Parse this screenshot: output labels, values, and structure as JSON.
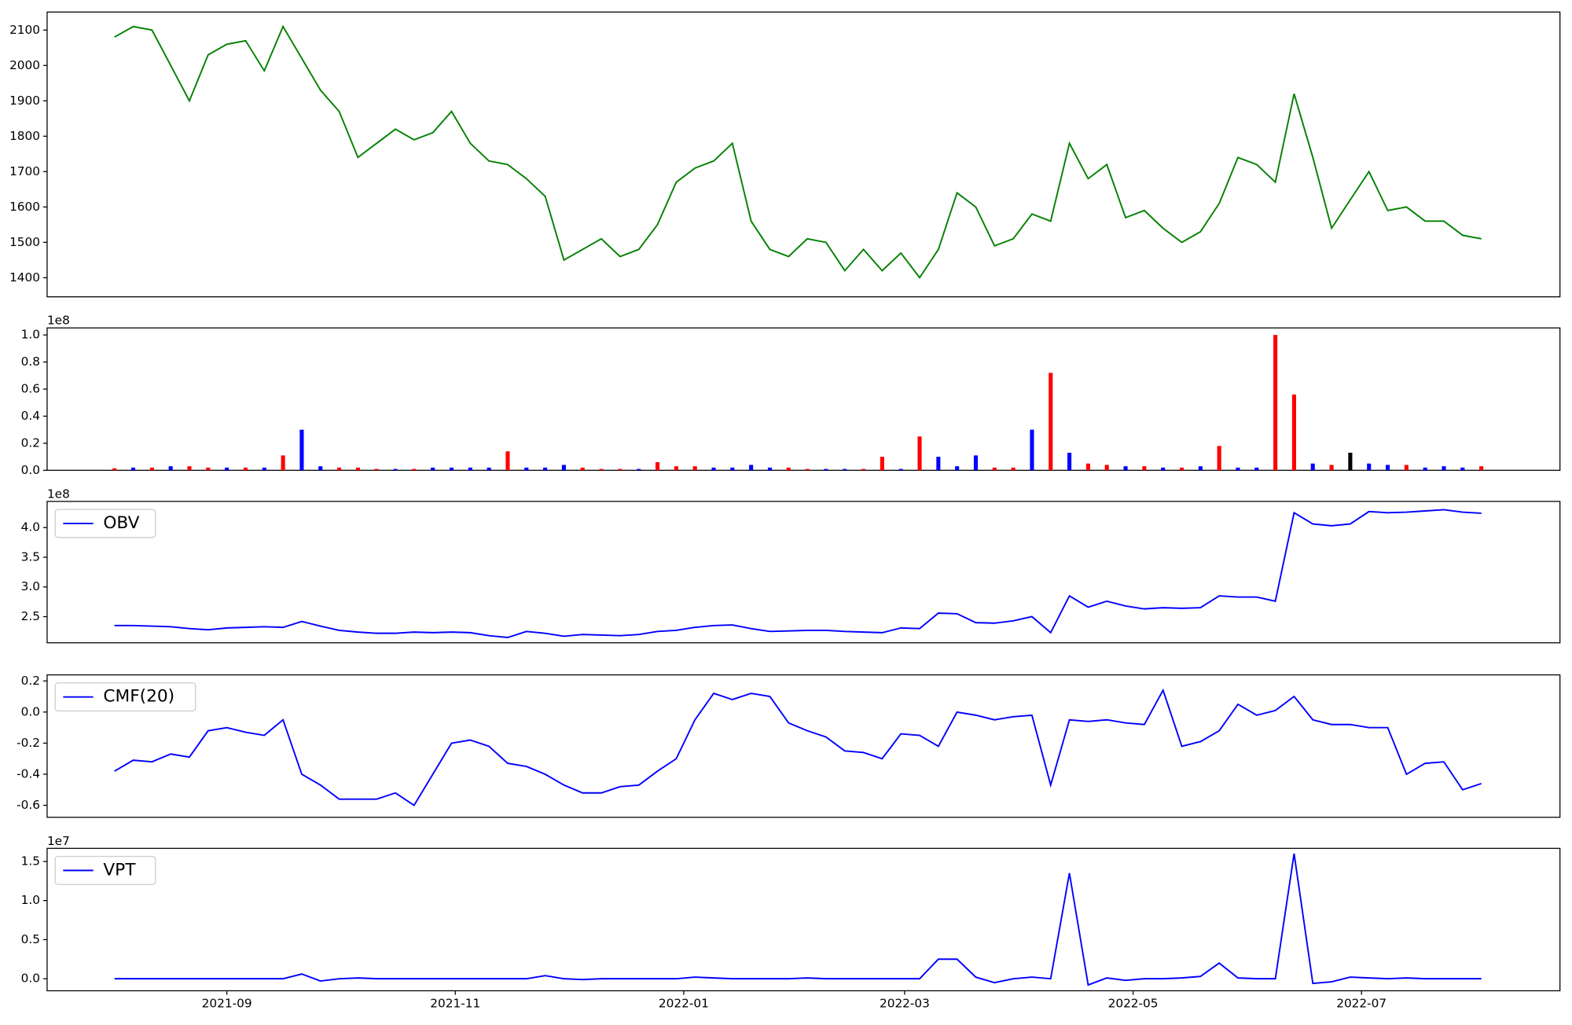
{
  "chart_data": [
    {
      "type": "line",
      "color": "#008000",
      "ylim": [
        1346,
        2151
      ],
      "yticks": [
        1400,
        1500,
        1600,
        1700,
        1800,
        1900,
        2000,
        2100
      ],
      "values": [
        2080,
        2110,
        2100,
        2000,
        1900,
        2030,
        2060,
        2070,
        1985,
        2110,
        2020,
        1930,
        1870,
        1740,
        1780,
        1820,
        1790,
        1810,
        1870,
        1780,
        1730,
        1720,
        1680,
        1630,
        1450,
        1480,
        1510,
        1460,
        1480,
        1550,
        1670,
        1710,
        1730,
        1780,
        1560,
        1480,
        1460,
        1510,
        1500,
        1420,
        1480,
        1420,
        1470,
        1400,
        1480,
        1640,
        1600,
        1490,
        1510,
        1580,
        1560,
        1780,
        1680,
        1720,
        1570,
        1590,
        1540,
        1500,
        1530,
        1610,
        1740,
        1720,
        1670,
        1920,
        1740,
        1540,
        1620,
        1700,
        1590,
        1600,
        1560,
        1560,
        1520,
        1510
      ]
    },
    {
      "type": "bar",
      "offset_label": "1e8",
      "ylim": [
        0,
        1.052
      ],
      "yticks": [
        {
          "value": 0,
          "label": "0.0"
        },
        0.2,
        0.4,
        0.6,
        0.8,
        {
          "value": 1,
          "label": "1.0"
        }
      ],
      "values": [
        0.015,
        0.02,
        0.02,
        0.03,
        0.03,
        0.02,
        0.02,
        0.02,
        0.02,
        0.11,
        0.3,
        0.03,
        0.02,
        0.02,
        0.01,
        0.01,
        0.01,
        0.02,
        0.02,
        0.02,
        0.02,
        0.14,
        0.02,
        0.02,
        0.04,
        0.02,
        0.01,
        0.01,
        0.01,
        0.06,
        0.03,
        0.03,
        0.02,
        0.02,
        0.04,
        0.02,
        0.02,
        0.01,
        0.01,
        0.01,
        0.01,
        0.1,
        0.01,
        0.25,
        0.1,
        0.03,
        0.11,
        0.02,
        0.02,
        0.3,
        0.72,
        0.13,
        0.05,
        0.04,
        0.03,
        0.03,
        0.02,
        0.02,
        0.03,
        0.18,
        0.02,
        0.02,
        1.0,
        0.56,
        0.05,
        0.04,
        0.13,
        0.05,
        0.04,
        0.04,
        0.02,
        0.03,
        0.02,
        0.03
      ],
      "colors": [
        "#ff0000",
        "#0000ff",
        "#ff0000",
        "#0000ff",
        "#ff0000",
        "#ff0000",
        "#0000ff",
        "#ff0000",
        "#0000ff",
        "#ff0000",
        "#0000ff",
        "#0000ff",
        "#ff0000",
        "#ff0000",
        "#ff0000",
        "#0000ff",
        "#ff0000",
        "#0000ff",
        "#0000ff",
        "#0000ff",
        "#0000ff",
        "#ff0000",
        "#0000ff",
        "#0000ff",
        "#0000ff",
        "#ff0000",
        "#ff0000",
        "#ff0000",
        "#0000ff",
        "#ff0000",
        "#ff0000",
        "#ff0000",
        "#0000ff",
        "#0000ff",
        "#0000ff",
        "#0000ff",
        "#ff0000",
        "#ff0000",
        "#0000ff",
        "#0000ff",
        "#ff0000",
        "#ff0000",
        "#0000ff",
        "#ff0000",
        "#0000ff",
        "#0000ff",
        "#0000ff",
        "#ff0000",
        "#ff0000",
        "#0000ff",
        "#ff0000",
        "#0000ff",
        "#ff0000",
        "#ff0000",
        "#0000ff",
        "#ff0000",
        "#0000ff",
        "#ff0000",
        "#0000ff",
        "#ff0000",
        "#0000ff",
        "#0000ff",
        "#ff0000",
        "#ff0000",
        "#0000ff",
        "#ff0000",
        "#000000",
        "#0000ff",
        "#0000ff",
        "#ff0000",
        "#0000ff",
        "#0000ff",
        "#0000ff",
        "#ff0000"
      ]
    },
    {
      "type": "line",
      "offset_label": "1e8",
      "legend": "upper left",
      "ylim": [
        2.06,
        4.44
      ],
      "yticks": [
        2.5,
        {
          "value": 3,
          "label": "3.0"
        },
        3.5,
        {
          "value": 4,
          "label": "4.0"
        }
      ],
      "series": [
        {
          "name": "OBV",
          "color": "#0000ff",
          "values": [
            2.35,
            2.35,
            2.34,
            2.33,
            2.3,
            2.28,
            2.31,
            2.32,
            2.33,
            2.32,
            2.42,
            2.34,
            2.27,
            2.24,
            2.22,
            2.22,
            2.24,
            2.23,
            2.24,
            2.23,
            2.18,
            2.15,
            2.25,
            2.22,
            2.17,
            2.2,
            2.19,
            2.18,
            2.2,
            2.25,
            2.27,
            2.32,
            2.35,
            2.36,
            2.3,
            2.25,
            2.26,
            2.27,
            2.27,
            2.25,
            2.24,
            2.23,
            2.31,
            2.3,
            2.56,
            2.55,
            2.4,
            2.39,
            2.43,
            2.5,
            2.23,
            2.85,
            2.66,
            2.76,
            2.68,
            2.63,
            2.65,
            2.64,
            2.65,
            2.85,
            2.83,
            2.83,
            2.76,
            4.25,
            4.06,
            4.03,
            4.06,
            4.27,
            4.25,
            4.26,
            4.28,
            4.3,
            4.26,
            4.24
          ]
        }
      ]
    },
    {
      "type": "line",
      "legend": "upper left",
      "ylim": [
        -0.677,
        0.239
      ],
      "yticks": [
        -0.6,
        -0.4,
        -0.2,
        {
          "value": 0,
          "label": "0.0"
        },
        0.2
      ],
      "series": [
        {
          "name": "CMF(20)",
          "color": "#0000ff",
          "values": [
            -0.38,
            -0.31,
            -0.32,
            -0.27,
            -0.29,
            -0.12,
            -0.1,
            -0.13,
            -0.15,
            -0.05,
            -0.4,
            -0.47,
            -0.56,
            -0.56,
            -0.56,
            -0.52,
            -0.6,
            -0.4,
            -0.2,
            -0.18,
            -0.22,
            -0.33,
            -0.35,
            -0.4,
            -0.47,
            -0.52,
            -0.52,
            -0.48,
            -0.47,
            -0.38,
            -0.3,
            -0.05,
            0.12,
            0.08,
            0.12,
            0.1,
            -0.07,
            -0.12,
            -0.16,
            -0.25,
            -0.26,
            -0.3,
            -0.14,
            -0.15,
            -0.22,
            0,
            -0.02,
            -0.05,
            -0.03,
            -0.02,
            -0.47,
            -0.05,
            -0.06,
            -0.05,
            -0.07,
            -0.08,
            0.14,
            -0.22,
            -0.19,
            -0.12,
            0.05,
            -0.02,
            0.01,
            0.1,
            -0.05,
            -0.08,
            -0.08,
            -0.1,
            -0.1,
            -0.4,
            -0.33,
            -0.32,
            -0.5,
            -0.46
          ]
        }
      ]
    },
    {
      "type": "line",
      "offset_label": "1e7",
      "legend": "upper left",
      "ylim": [
        -0.154,
        1.667
      ],
      "yticks": [
        {
          "value": 0,
          "label": "0.0"
        },
        0.5,
        {
          "value": 1,
          "label": "1.0"
        },
        1.5
      ],
      "xlim": [
        -17,
        387
      ],
      "xticks": [
        {
          "value": 31,
          "label": "2021-09"
        },
        {
          "value": 92,
          "label": "2021-11"
        },
        {
          "value": 153,
          "label": "2022-01"
        },
        {
          "value": 212,
          "label": "2022-03"
        },
        {
          "value": 273,
          "label": "2022-05"
        },
        {
          "value": 334,
          "label": "2022-07"
        }
      ],
      "x": [
        1,
        6,
        11,
        16,
        21,
        26,
        31,
        36,
        41,
        46,
        51,
        56,
        61,
        66,
        71,
        76,
        81,
        86,
        91,
        96,
        101,
        106,
        111,
        116,
        121,
        126,
        131,
        136,
        141,
        146,
        151,
        156,
        161,
        166,
        171,
        176,
        181,
        186,
        191,
        196,
        201,
        206,
        211,
        216,
        221,
        226,
        231,
        236,
        241,
        246,
        251,
        256,
        261,
        266,
        271,
        276,
        281,
        286,
        291,
        296,
        301,
        306,
        311,
        316,
        321,
        326,
        331,
        336,
        341,
        346,
        351,
        356,
        361,
        366
      ],
      "series": [
        {
          "name": "VPT",
          "color": "#0000ff",
          "values": [
            0,
            0,
            0,
            0,
            0,
            0,
            0,
            0,
            0,
            0,
            0.06,
            -0.03,
            0,
            0.01,
            0,
            0,
            0,
            0,
            0,
            0,
            0,
            0,
            0,
            0.04,
            0,
            -0.01,
            0,
            0,
            0,
            0,
            0,
            0.02,
            0.01,
            0,
            0,
            0,
            0,
            0.01,
            0,
            0,
            0,
            0,
            0,
            0,
            0.25,
            0.25,
            0.02,
            -0.05,
            0,
            0.02,
            0,
            1.35,
            -0.08,
            0.01,
            -0.02,
            0,
            0,
            0.01,
            0.03,
            0.2,
            0.01,
            0,
            0,
            1.6,
            -0.06,
            -0.04,
            0.02,
            0.01,
            0,
            0.01,
            0,
            0,
            0,
            0
          ]
        }
      ]
    }
  ]
}
